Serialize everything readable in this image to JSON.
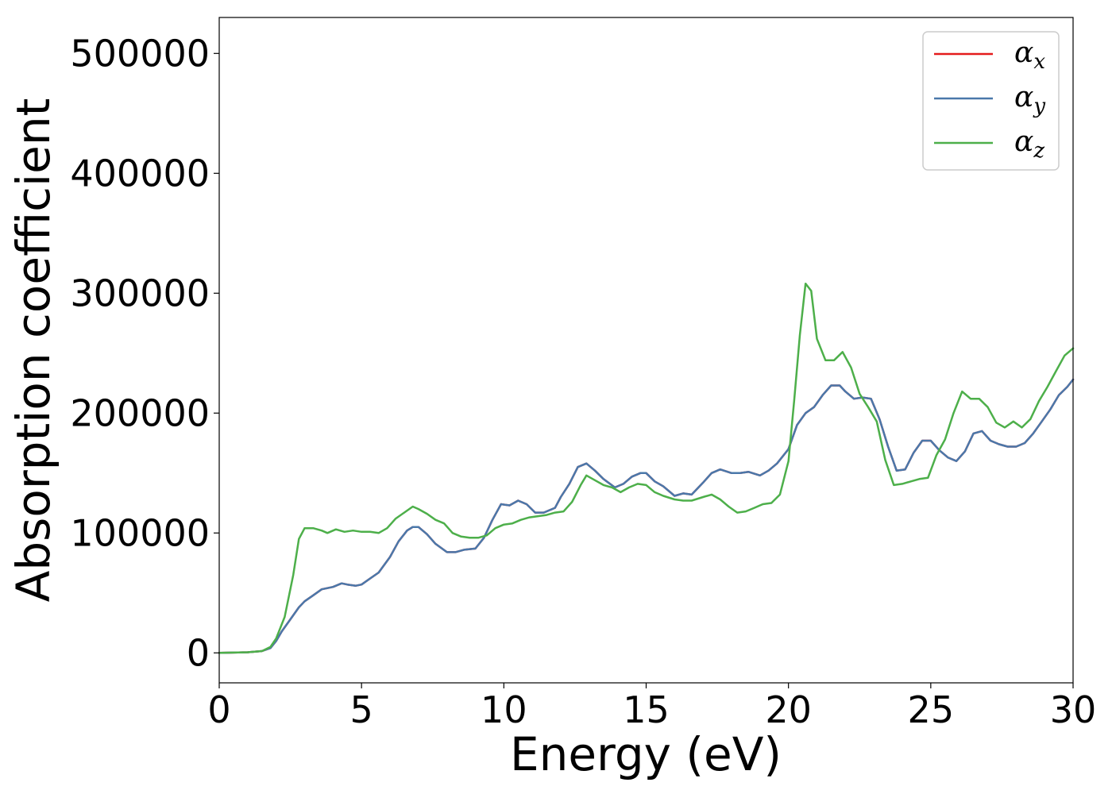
{
  "chart_data": {
    "type": "line",
    "title": "",
    "xlabel": "Energy (eV)",
    "ylabel": "Absorption coefficient",
    "xlim": [
      0,
      30
    ],
    "ylim": [
      -25000,
      530000
    ],
    "xticks": [
      0,
      5,
      10,
      15,
      20,
      25,
      30
    ],
    "xtick_labels": [
      "0",
      "5",
      "10",
      "15",
      "20",
      "25",
      "30"
    ],
    "yticks": [
      0,
      100000,
      200000,
      300000,
      400000,
      500000
    ],
    "ytick_labels": [
      "0",
      "100000",
      "200000",
      "300000",
      "400000",
      "500000"
    ],
    "grid": false,
    "legend_position": "top-right",
    "series": [
      {
        "name": "αx",
        "label_base": "α",
        "label_sub": "x",
        "color": "#e41a1c",
        "x": [
          0,
          1,
          1.5,
          1.8,
          2,
          2.2,
          2.5,
          2.8,
          3,
          3.3,
          3.6,
          3.8,
          4,
          4.3,
          4.5,
          4.8,
          5,
          5.3,
          5.6,
          6,
          6.3,
          6.6,
          6.8,
          7,
          7.3,
          7.6,
          8,
          8.3,
          8.6,
          9,
          9.3,
          9.6,
          9.9,
          10.2,
          10.5,
          10.8,
          11.1,
          11.4,
          11.8,
          12,
          12.3,
          12.6,
          12.9,
          13.2,
          13.5,
          13.9,
          14.2,
          14.5,
          14.8,
          15,
          15.3,
          15.6,
          16,
          16.3,
          16.6,
          17,
          17.3,
          17.6,
          18,
          18.3,
          18.6,
          19,
          19.3,
          19.6,
          20,
          20.3,
          20.6,
          20.9,
          21.2,
          21.5,
          21.8,
          22,
          22.3,
          22.6,
          22.9,
          23.2,
          23.5,
          23.8,
          24.1,
          24.4,
          24.7,
          25,
          25.3,
          25.6,
          25.9,
          26.2,
          26.5,
          26.8,
          27.1,
          27.4,
          27.7,
          28,
          28.3,
          28.6,
          28.9,
          29.2,
          29.5,
          29.8,
          30
        ],
        "values": [
          0,
          500,
          1500,
          4000,
          10000,
          18000,
          28000,
          38000,
          43000,
          48000,
          53000,
          54000,
          55000,
          58000,
          57000,
          56000,
          57000,
          62000,
          67000,
          80000,
          93000,
          102000,
          105000,
          105000,
          99000,
          91000,
          84000,
          84000,
          86000,
          87000,
          96000,
          111000,
          124000,
          123000,
          127000,
          124000,
          117000,
          117000,
          121000,
          130000,
          141000,
          155000,
          158000,
          152000,
          145000,
          138000,
          141000,
          147000,
          150000,
          150000,
          143000,
          139000,
          131000,
          133000,
          132000,
          142000,
          150000,
          153000,
          150000,
          150000,
          151000,
          148000,
          152000,
          158000,
          170000,
          190000,
          200000,
          205000,
          215000,
          223000,
          223000,
          218000,
          212000,
          213000,
          212000,
          195000,
          172000,
          152000,
          153000,
          167000,
          177000,
          177000,
          169000,
          163000,
          160000,
          168000,
          183000,
          185000,
          177000,
          174000,
          172000,
          172000,
          175000,
          183000,
          193000,
          203000,
          215000,
          222000,
          228000
        ]
      },
      {
        "name": "αy",
        "label_base": "α",
        "label_sub": "y",
        "color": "#4a78aa",
        "x": [
          0,
          1,
          1.5,
          1.8,
          2,
          2.2,
          2.5,
          2.8,
          3,
          3.3,
          3.6,
          3.8,
          4,
          4.3,
          4.5,
          4.8,
          5,
          5.3,
          5.6,
          6,
          6.3,
          6.6,
          6.8,
          7,
          7.3,
          7.6,
          8,
          8.3,
          8.6,
          9,
          9.3,
          9.6,
          9.9,
          10.2,
          10.5,
          10.8,
          11.1,
          11.4,
          11.8,
          12,
          12.3,
          12.6,
          12.9,
          13.2,
          13.5,
          13.9,
          14.2,
          14.5,
          14.8,
          15,
          15.3,
          15.6,
          16,
          16.3,
          16.6,
          17,
          17.3,
          17.6,
          18,
          18.3,
          18.6,
          19,
          19.3,
          19.6,
          20,
          20.3,
          20.6,
          20.9,
          21.2,
          21.5,
          21.8,
          22,
          22.3,
          22.6,
          22.9,
          23.2,
          23.5,
          23.8,
          24.1,
          24.4,
          24.7,
          25,
          25.3,
          25.6,
          25.9,
          26.2,
          26.5,
          26.8,
          27.1,
          27.4,
          27.7,
          28,
          28.3,
          28.6,
          28.9,
          29.2,
          29.5,
          29.8,
          30
        ],
        "values": [
          0,
          500,
          1500,
          4000,
          10000,
          18000,
          28000,
          38000,
          43000,
          48000,
          53000,
          54000,
          55000,
          58000,
          57000,
          56000,
          57000,
          62000,
          67000,
          80000,
          93000,
          102000,
          105000,
          105000,
          99000,
          91000,
          84000,
          84000,
          86000,
          87000,
          96000,
          111000,
          124000,
          123000,
          127000,
          124000,
          117000,
          117000,
          121000,
          130000,
          141000,
          155000,
          158000,
          152000,
          145000,
          138000,
          141000,
          147000,
          150000,
          150000,
          143000,
          139000,
          131000,
          133000,
          132000,
          142000,
          150000,
          153000,
          150000,
          150000,
          151000,
          148000,
          152000,
          158000,
          170000,
          190000,
          200000,
          205000,
          215000,
          223000,
          223000,
          218000,
          212000,
          213000,
          212000,
          195000,
          172000,
          152000,
          153000,
          167000,
          177000,
          177000,
          169000,
          163000,
          160000,
          168000,
          183000,
          185000,
          177000,
          174000,
          172000,
          172000,
          175000,
          183000,
          193000,
          203000,
          215000,
          222000,
          228000
        ]
      },
      {
        "name": "αz",
        "label_base": "α",
        "label_sub": "z",
        "color": "#4daf4a",
        "x": [
          0,
          1,
          1.5,
          1.8,
          2,
          2.3,
          2.6,
          2.8,
          3,
          3.3,
          3.6,
          3.8,
          4.1,
          4.4,
          4.7,
          5,
          5.3,
          5.6,
          5.9,
          6.2,
          6.5,
          6.8,
          7,
          7.3,
          7.6,
          7.9,
          8.2,
          8.5,
          8.8,
          9.1,
          9.4,
          9.7,
          10,
          10.3,
          10.6,
          10.9,
          11.2,
          11.5,
          11.8,
          12.1,
          12.4,
          12.7,
          12.9,
          13.2,
          13.5,
          13.8,
          14.1,
          14.4,
          14.7,
          15,
          15.3,
          15.6,
          16,
          16.3,
          16.6,
          17,
          17.3,
          17.6,
          17.9,
          18.2,
          18.5,
          18.8,
          19.1,
          19.4,
          19.7,
          20,
          20.2,
          20.4,
          20.6,
          20.8,
          21,
          21.3,
          21.6,
          21.9,
          22.2,
          22.5,
          22.8,
          23.1,
          23.4,
          23.7,
          24,
          24.3,
          24.6,
          24.9,
          25.2,
          25.5,
          25.8,
          26.1,
          26.4,
          26.7,
          27,
          27.3,
          27.6,
          27.9,
          28.2,
          28.5,
          28.8,
          29.1,
          29.4,
          29.7,
          30
        ],
        "values": [
          0,
          500,
          1500,
          5000,
          12000,
          30000,
          65000,
          95000,
          104000,
          104000,
          102000,
          100000,
          103000,
          101000,
          102000,
          101000,
          101000,
          100000,
          104000,
          112000,
          117000,
          122000,
          120000,
          116000,
          111000,
          108000,
          100000,
          97000,
          96000,
          96000,
          98000,
          104000,
          107000,
          108000,
          111000,
          113000,
          114000,
          115000,
          117000,
          118000,
          126000,
          140000,
          148000,
          144000,
          140000,
          138000,
          134000,
          138000,
          141000,
          140000,
          134000,
          131000,
          128000,
          127000,
          127000,
          130000,
          132000,
          128000,
          122000,
          117000,
          118000,
          121000,
          124000,
          125000,
          132000,
          160000,
          210000,
          265000,
          308000,
          302000,
          262000,
          244000,
          244000,
          251000,
          238000,
          216000,
          205000,
          193000,
          161000,
          140000,
          141000,
          143000,
          145000,
          146000,
          165000,
          178000,
          200000,
          218000,
          212000,
          212000,
          205000,
          192000,
          188000,
          193000,
          188000,
          195000,
          210000,
          222000,
          235000,
          248000,
          254000
        ]
      }
    ]
  }
}
